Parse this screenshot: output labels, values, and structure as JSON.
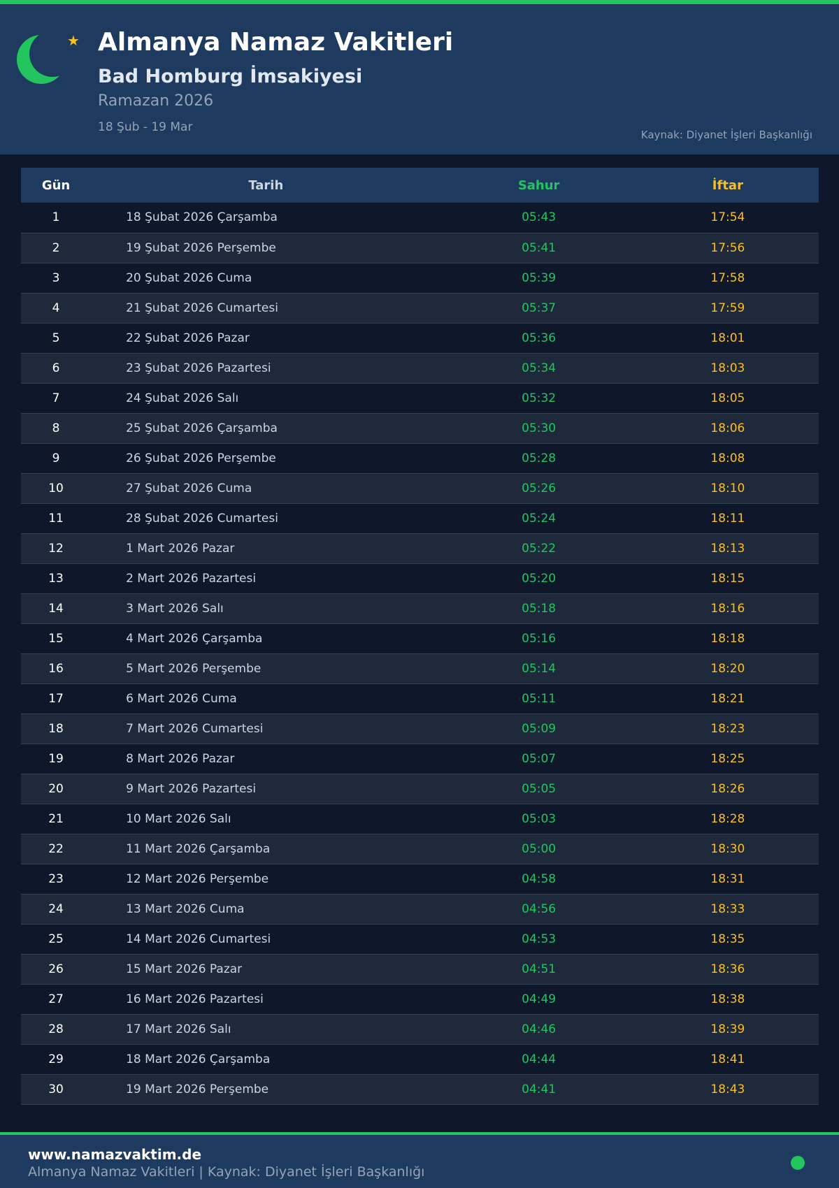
{
  "header": {
    "title": "Almanya Namaz Vakitleri",
    "subtitle": "Bad Homburg İmsakiyesi",
    "ramadan": "Ramazan 2026",
    "range": "18 Şub - 19 Mar",
    "source": "Kaynak: Diyanet İşleri Başkanlığı",
    "icon": "crescent-star-icon"
  },
  "table": {
    "headers": [
      "Gün",
      "Tarih",
      "Sahur",
      "İftar"
    ],
    "rows": [
      [
        "1",
        "18 Şubat 2026 Çarşamba",
        "05:43",
        "17:54"
      ],
      [
        "2",
        "19 Şubat 2026 Perşembe",
        "05:41",
        "17:56"
      ],
      [
        "3",
        "20 Şubat 2026 Cuma",
        "05:39",
        "17:58"
      ],
      [
        "4",
        "21 Şubat 2026 Cumartesi",
        "05:37",
        "17:59"
      ],
      [
        "5",
        "22 Şubat 2026 Pazar",
        "05:36",
        "18:01"
      ],
      [
        "6",
        "23 Şubat 2026 Pazartesi",
        "05:34",
        "18:03"
      ],
      [
        "7",
        "24 Şubat 2026 Salı",
        "05:32",
        "18:05"
      ],
      [
        "8",
        "25 Şubat 2026 Çarşamba",
        "05:30",
        "18:06"
      ],
      [
        "9",
        "26 Şubat 2026 Perşembe",
        "05:28",
        "18:08"
      ],
      [
        "10",
        "27 Şubat 2026 Cuma",
        "05:26",
        "18:10"
      ],
      [
        "11",
        "28 Şubat 2026 Cumartesi",
        "05:24",
        "18:11"
      ],
      [
        "12",
        "1 Mart 2026 Pazar",
        "05:22",
        "18:13"
      ],
      [
        "13",
        "2 Mart 2026 Pazartesi",
        "05:20",
        "18:15"
      ],
      [
        "14",
        "3 Mart 2026 Salı",
        "05:18",
        "18:16"
      ],
      [
        "15",
        "4 Mart 2026 Çarşamba",
        "05:16",
        "18:18"
      ],
      [
        "16",
        "5 Mart 2026 Perşembe",
        "05:14",
        "18:20"
      ],
      [
        "17",
        "6 Mart 2026 Cuma",
        "05:11",
        "18:21"
      ],
      [
        "18",
        "7 Mart 2026 Cumartesi",
        "05:09",
        "18:23"
      ],
      [
        "19",
        "8 Mart 2026 Pazar",
        "05:07",
        "18:25"
      ],
      [
        "20",
        "9 Mart 2026 Pazartesi",
        "05:05",
        "18:26"
      ],
      [
        "21",
        "10 Mart 2026 Salı",
        "05:03",
        "18:28"
      ],
      [
        "22",
        "11 Mart 2026 Çarşamba",
        "05:00",
        "18:30"
      ],
      [
        "23",
        "12 Mart 2026 Perşembe",
        "04:58",
        "18:31"
      ],
      [
        "24",
        "13 Mart 2026 Cuma",
        "04:56",
        "18:33"
      ],
      [
        "25",
        "14 Mart 2026 Cumartesi",
        "04:53",
        "18:35"
      ],
      [
        "26",
        "15 Mart 2026 Pazar",
        "04:51",
        "18:36"
      ],
      [
        "27",
        "16 Mart 2026 Pazartesi",
        "04:49",
        "18:38"
      ],
      [
        "28",
        "17 Mart 2026 Salı",
        "04:46",
        "18:39"
      ],
      [
        "29",
        "18 Mart 2026 Çarşamba",
        "04:44",
        "18:41"
      ],
      [
        "30",
        "19 Mart 2026 Perşembe",
        "04:41",
        "18:43"
      ]
    ]
  },
  "footer": {
    "site": "www.namazvaktim.de",
    "text": "Almanya Namaz Vakitleri | Kaynak: Diyanet İşleri Başkanlığı"
  },
  "colors": {
    "accent": "#22c55e",
    "iftar": "#fbbf24",
    "header_bg": "#1e3a5f",
    "page_bg": "#0f172a"
  }
}
